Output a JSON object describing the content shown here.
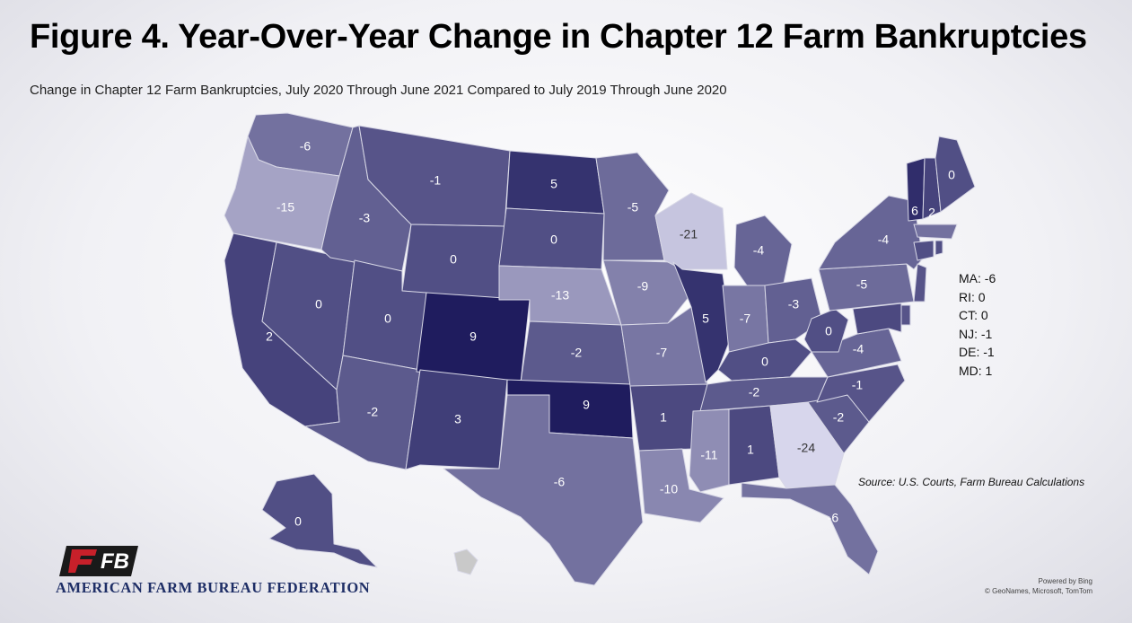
{
  "title": "Figure 4. Year-Over-Year Change in Chapter 12 Farm Bankruptcies",
  "subtitle": "Change in Chapter 12 Farm Bankruptcies, July 2020 Through June 2021 Compared to July 2019 Through June 2020",
  "color_scale": {
    "min_value": -24,
    "max_value": 9,
    "low_color": "#d7d6ec",
    "high_color": "#1f1c5e"
  },
  "states": [
    {
      "code": "WA",
      "value": -6
    },
    {
      "code": "OR",
      "value": -15
    },
    {
      "code": "CA",
      "value": 2
    },
    {
      "code": "NV",
      "value": 0
    },
    {
      "code": "ID",
      "value": -3
    },
    {
      "code": "MT",
      "value": -1
    },
    {
      "code": "WY",
      "value": 0
    },
    {
      "code": "UT",
      "value": 0
    },
    {
      "code": "AZ",
      "value": -2
    },
    {
      "code": "CO",
      "value": 9
    },
    {
      "code": "NM",
      "value": 3
    },
    {
      "code": "ND",
      "value": 5
    },
    {
      "code": "SD",
      "value": 0
    },
    {
      "code": "NE",
      "value": -13
    },
    {
      "code": "KS",
      "value": -2
    },
    {
      "code": "OK",
      "value": 9
    },
    {
      "code": "TX",
      "value": -6
    },
    {
      "code": "MN",
      "value": -5
    },
    {
      "code": "IA",
      "value": -9
    },
    {
      "code": "MO",
      "value": -7
    },
    {
      "code": "AR",
      "value": 1
    },
    {
      "code": "LA",
      "value": -10
    },
    {
      "code": "WI",
      "value": -21
    },
    {
      "code": "IL",
      "value": 5
    },
    {
      "code": "MI",
      "value": -4
    },
    {
      "code": "IN",
      "value": -7
    },
    {
      "code": "OH",
      "value": -3
    },
    {
      "code": "KY",
      "value": 0
    },
    {
      "code": "TN",
      "value": -2
    },
    {
      "code": "MS",
      "value": -11
    },
    {
      "code": "AL",
      "value": 1
    },
    {
      "code": "GA",
      "value": -24
    },
    {
      "code": "FL",
      "value": -6
    },
    {
      "code": "SC",
      "value": -2
    },
    {
      "code": "NC",
      "value": -1
    },
    {
      "code": "VA",
      "value": -4
    },
    {
      "code": "WV",
      "value": 0
    },
    {
      "code": "PA",
      "value": -5
    },
    {
      "code": "NY",
      "value": -4
    },
    {
      "code": "VT",
      "value": 6
    },
    {
      "code": "NH",
      "value": 2
    },
    {
      "code": "ME",
      "value": 0
    },
    {
      "code": "MA",
      "value": -6
    },
    {
      "code": "RI",
      "value": 0
    },
    {
      "code": "CT",
      "value": 0
    },
    {
      "code": "NJ",
      "value": -1
    },
    {
      "code": "DE",
      "value": -1
    },
    {
      "code": "MD",
      "value": 1
    },
    {
      "code": "AK",
      "value": 0
    },
    {
      "code": "HI",
      "value": null
    }
  ],
  "side_labels": [
    "MA: -6",
    "RI: 0",
    "CT: 0",
    "NJ: -1",
    "DE: -1",
    "MD: 1"
  ],
  "source": "Source: U.S. Courts, Farm Bureau Calculations",
  "powered_by": [
    "Powered by Bing",
    "© GeoNames, Microsoft, TomTom"
  ],
  "org_name": "AMERICAN FARM BUREAU FEDERATION",
  "logo_text": "FB"
}
